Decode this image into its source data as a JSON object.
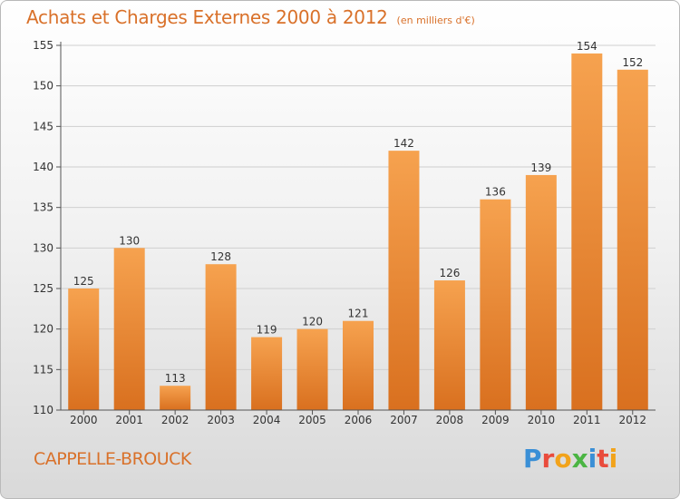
{
  "header": {
    "title": "Achats et Charges Externes 2000 à 2012",
    "unit": "(en milliers d'€)"
  },
  "footer": {
    "commune": "CAPPELLE-BROUCK",
    "brand_letters": [
      "P",
      "r",
      "o",
      "x",
      "i",
      "t",
      "i"
    ],
    "brand_colors": [
      "#3a8fd6",
      "#e94b3c",
      "#f2a31b",
      "#4bb543",
      "#3a8fd6",
      "#e94b3c",
      "#f2a31b"
    ]
  },
  "chart_data": {
    "type": "bar",
    "title": "Achats et Charges Externes 2000 à 2012",
    "subtitle": "(en milliers d'€)",
    "categories": [
      "2000",
      "2001",
      "2002",
      "2003",
      "2004",
      "2005",
      "2006",
      "2007",
      "2008",
      "2009",
      "2010",
      "2011",
      "2012"
    ],
    "values": [
      125,
      130,
      113,
      128,
      119,
      120,
      121,
      142,
      126,
      136,
      139,
      154,
      152
    ],
    "ylim": [
      110,
      155
    ],
    "yticks": [
      110,
      115,
      120,
      125,
      130,
      135,
      140,
      145,
      150,
      155
    ],
    "grid": true,
    "colors": {
      "bar_light": "#f6a24f",
      "bar_dark": "#d9701f",
      "grid": "#cfcfcf",
      "axis": "#555555"
    }
  }
}
